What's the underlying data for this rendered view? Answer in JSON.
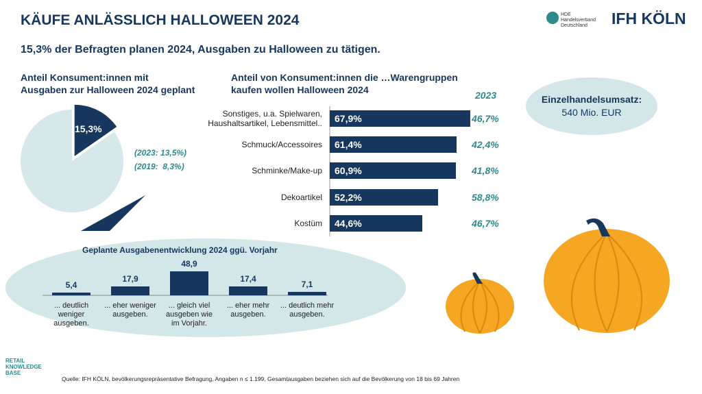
{
  "title": "KÄUFE ANLÄSSLICH HALLOWEEN 2024",
  "subtitle": "15,3% der Befragten planen 2024, Ausgaben zu Halloween zu tätigen.",
  "revenue": {
    "label": "Einzelhandelsumsatz:",
    "value": "540 Mio. EUR"
  },
  "logos": {
    "hde": "HDE",
    "hde_name": "Handelsverband\nDeutschland",
    "ifh": "IFH KÖLN",
    "rkb": "RETAIL\nKNOWLEDGE\nBASE"
  },
  "source": "Quelle: IFH KÖLN, bevölkerungsrepräsentative Befragung, Angaben n ≤ 1.199, Gesamtausgaben beziehen sich auf die Bevölkerung von 18 bis 69 Jahren",
  "chart_data": [
    {
      "type": "pie",
      "title": "Anteil Konsument:innen mit\nAusgaben zur Halloween 2024 geplant",
      "values": [
        15.3,
        84.7
      ],
      "value_labels": [
        "15,3%",
        null
      ],
      "colors": [
        "#17375e",
        "#d6e8ea"
      ],
      "annotations": [
        "(2023: 13,5%)",
        "(2019:  8,3%)"
      ]
    },
    {
      "type": "bar",
      "orientation": "horizontal",
      "title": "Anteil von Konsument:innen die …Warengruppen\nkaufen wollen Halloween 2024",
      "categories": [
        "Sonstiges, u.a. Spielwaren,\nHaushaltsartikel, Lebensmittel..",
        "Schmuck/Accessoires",
        "Schminke/Make-up",
        "Dekoartikel",
        "Kostüm"
      ],
      "xlim": [
        0,
        100
      ],
      "series": [
        {
          "color": "#17375e",
          "values": [
            67.9,
            61.4,
            60.9,
            52.2,
            44.6
          ],
          "value_labels": [
            "67,9%",
            "61,4%",
            "60,9%",
            "52,2%",
            "44,6%"
          ]
        },
        {
          "name": "2023",
          "color": "#2e8b8b",
          "values": [
            46.7,
            42.4,
            41.8,
            58.8,
            46.7
          ],
          "value_labels": [
            "46,7%",
            "42,4%",
            "41,8%",
            "58,8%",
            "46,7%"
          ]
        }
      ]
    },
    {
      "type": "column",
      "title": "Geplante Ausgabenentwicklung 2024 ggü. Vorjahr",
      "categories": [
        "... deutlich\nweniger\nausgeben.",
        "... eher weniger\nausgeben.",
        "... gleich viel\nausgeben wie\nim Vorjahr.",
        "... eher mehr\nausgeben.",
        "... deutlich mehr\nausgeben."
      ],
      "values": [
        5.4,
        17.9,
        48.9,
        17.4,
        7.1
      ],
      "value_labels": [
        "5,4",
        "17,9",
        "48,9",
        "17,4",
        "7,1"
      ],
      "ylim": [
        0,
        50
      ],
      "color": "#17375e"
    }
  ]
}
